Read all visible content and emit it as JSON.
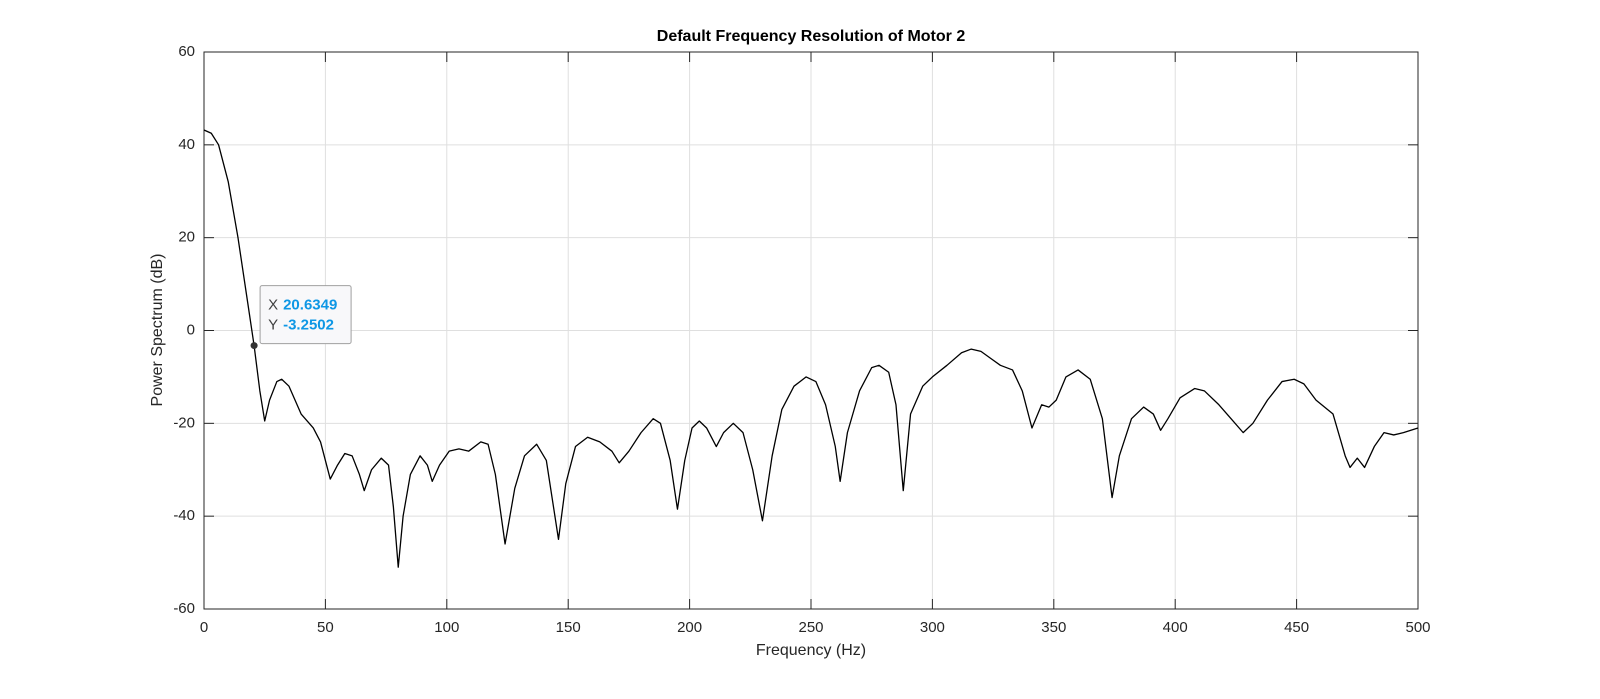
{
  "chart_data": {
    "type": "line",
    "title": "Default Frequency Resolution of Motor 2",
    "xlabel": "Frequency (Hz)",
    "ylabel": "Power Spectrum (dB)",
    "x": [
      0,
      3,
      6,
      10,
      14,
      18,
      20.6349,
      23,
      25,
      27,
      30,
      32,
      35,
      40,
      45,
      48,
      52,
      55,
      58,
      61,
      64,
      66,
      69,
      73,
      76,
      78,
      80,
      82,
      85,
      89,
      92,
      94,
      97,
      101,
      105,
      109,
      114,
      117,
      120,
      124,
      128,
      132,
      137,
      141,
      146,
      149,
      153,
      158,
      163,
      168,
      171,
      175,
      180,
      185,
      188,
      192,
      195,
      198,
      201,
      204,
      207,
      211,
      214,
      218,
      222,
      226,
      230,
      234,
      238,
      243,
      248,
      252,
      256,
      260,
      262,
      265,
      270,
      275,
      278,
      282,
      285,
      288,
      291,
      296,
      300,
      306,
      312,
      316,
      320,
      324,
      328,
      333,
      337,
      341,
      345,
      348,
      351,
      355,
      360,
      365,
      370,
      374,
      377,
      382,
      387,
      391,
      394,
      397,
      402,
      408,
      412,
      418,
      423,
      428,
      432,
      438,
      444,
      449,
      453,
      458,
      465,
      470,
      472,
      475,
      478,
      482,
      486,
      490,
      494,
      500
    ],
    "values": [
      43.2,
      42.5,
      40,
      32,
      20,
      6,
      -3.2502,
      -13,
      -19.5,
      -15,
      -11,
      -10.5,
      -12,
      -18,
      -21,
      -24,
      -32,
      -29,
      -26.5,
      -27,
      -31,
      -34.5,
      -30,
      -27.5,
      -29,
      -38,
      -51,
      -40,
      -31,
      -27,
      -29,
      -32.5,
      -29,
      -26,
      -25.5,
      -26,
      -24,
      -24.5,
      -31,
      -46,
      -34,
      -27,
      -24.5,
      -28,
      -45,
      -33,
      -25,
      -23,
      -24,
      -26,
      -28.5,
      -26,
      -22,
      -19,
      -20,
      -28,
      -38.5,
      -28,
      -21,
      -19.5,
      -21,
      -25,
      -22,
      -20,
      -22,
      -30,
      -41,
      -27,
      -17,
      -12,
      -10,
      -11,
      -16,
      -25,
      -32.5,
      -22,
      -13,
      -8,
      -7.5,
      -9,
      -16,
      -34.5,
      -18,
      -12,
      -10,
      -7.5,
      -4.8,
      -4,
      -4.5,
      -6,
      -7.5,
      -8.5,
      -13,
      -21,
      -16,
      -16.5,
      -15,
      -10,
      -8.5,
      -10.5,
      -19,
      -36,
      -27,
      -19,
      -16.5,
      -18,
      -21.5,
      -19,
      -14.5,
      -12.5,
      -13,
      -16,
      -19,
      -22,
      -20,
      -15,
      -11,
      -10.5,
      -11.5,
      -15,
      -18,
      -27,
      -29.5,
      -27.5,
      -29.5,
      -25,
      -22,
      -22.5,
      -22,
      -21
    ],
    "color": "#000000",
    "xlim": [
      0,
      500
    ],
    "xticks": [
      0,
      50,
      100,
      150,
      200,
      250,
      300,
      350,
      400,
      450,
      500
    ],
    "ylim": [
      -60,
      60
    ],
    "yticks": [
      -60,
      -40,
      -20,
      0,
      20,
      40,
      60
    ],
    "grid": true,
    "datatip": {
      "x_label": "X",
      "x": 20.6349,
      "y_label": "Y",
      "y": -3.2502
    }
  }
}
